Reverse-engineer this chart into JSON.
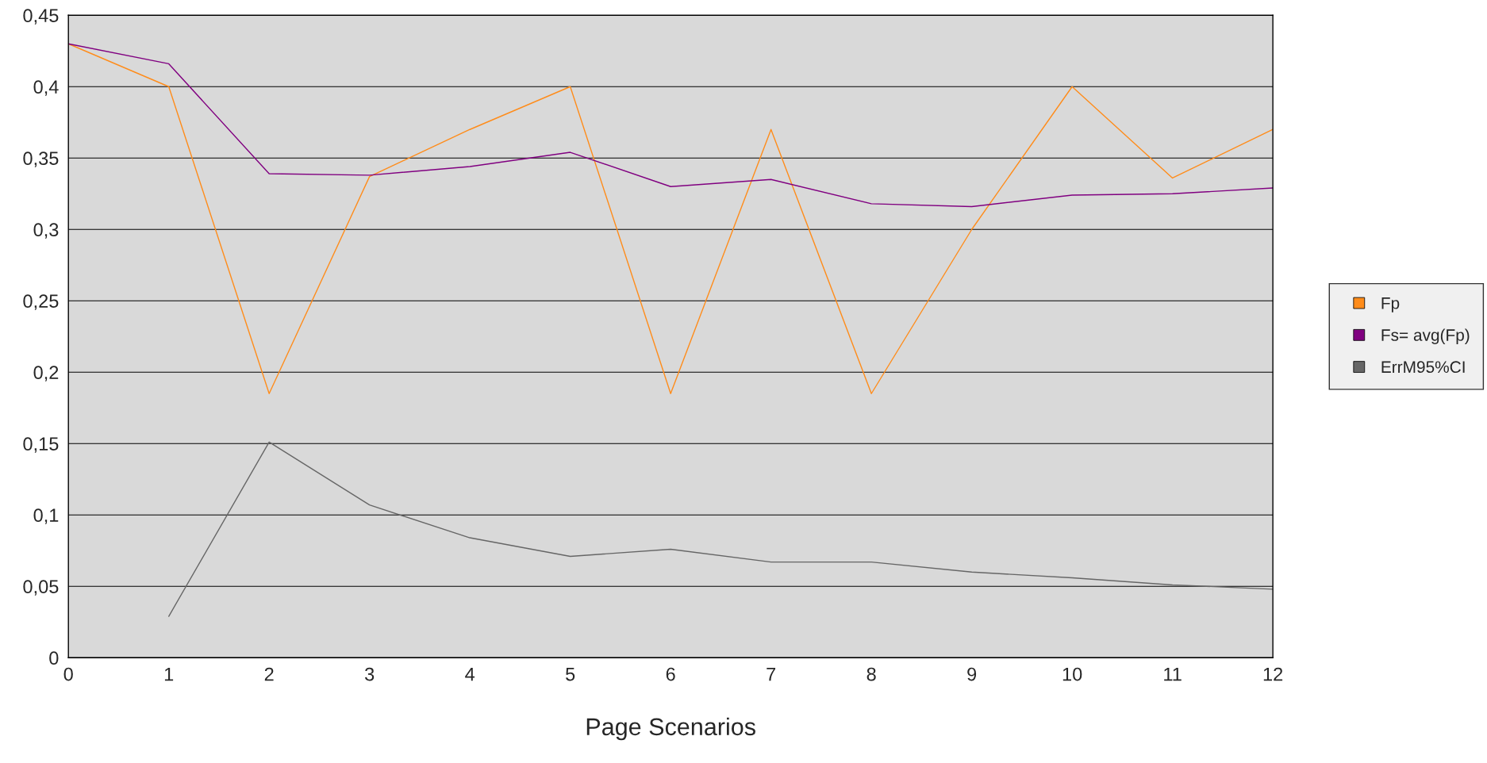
{
  "chart_data": {
    "type": "line",
    "xlabel": "Page Scenarios",
    "x": [
      0,
      1,
      2,
      3,
      4,
      5,
      6,
      7,
      8,
      9,
      10,
      11,
      12
    ],
    "series": [
      {
        "name": "Fp",
        "color": "#ff8c1a",
        "values": [
          0.43,
          0.4,
          0.185,
          0.337,
          0.37,
          0.4,
          0.185,
          0.37,
          0.185,
          0.3,
          0.4,
          0.336,
          0.37
        ]
      },
      {
        "name": "Fs= avg(Fp)",
        "color": "#800080",
        "values": [
          0.43,
          0.416,
          0.339,
          0.338,
          0.344,
          0.354,
          0.33,
          0.335,
          0.318,
          0.316,
          0.324,
          0.325,
          0.329
        ]
      },
      {
        "name": "ErrM95%CI",
        "color": "#666666",
        "values": [
          null,
          0.029,
          0.151,
          0.107,
          0.084,
          0.071,
          0.076,
          0.067,
          0.067,
          0.06,
          0.056,
          0.051,
          0.048
        ]
      }
    ],
    "xlim": [
      0,
      12
    ],
    "xticks": [
      0,
      1,
      2,
      3,
      4,
      5,
      6,
      7,
      8,
      9,
      10,
      11,
      12
    ],
    "ylim": [
      0,
      0.45
    ],
    "yticks": [
      0,
      {
        "value": 0.05,
        "label": "0,05"
      },
      {
        "value": 0.1,
        "label": "0,1"
      },
      {
        "value": 0.15,
        "label": "0,15"
      },
      {
        "value": 0.2,
        "label": "0,2"
      },
      {
        "value": 0.25,
        "label": "0,25"
      },
      {
        "value": 0.3,
        "label": "0,3"
      },
      {
        "value": 0.35,
        "label": "0,35"
      },
      {
        "value": 0.4,
        "label": "0,4"
      },
      {
        "value": 0.45,
        "label": "0,45"
      }
    ],
    "grid": "y",
    "legend": "right",
    "marker": "none",
    "line_style": "solid"
  }
}
